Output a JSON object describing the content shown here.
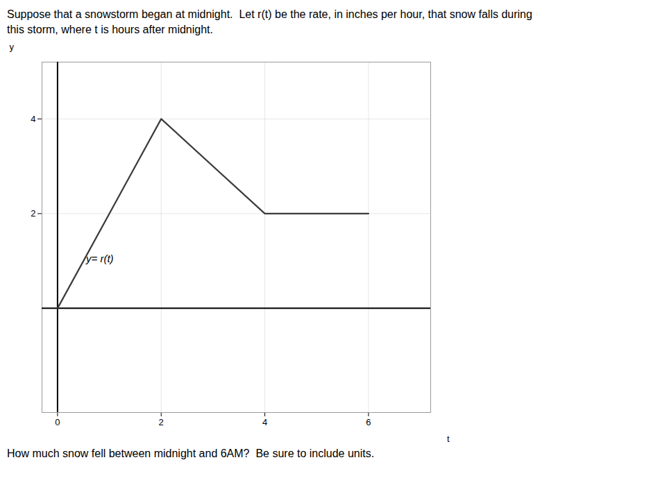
{
  "chart_data": {
    "type": "line",
    "title": "Suppose that a snowstorm began at midnight.  Let r(t) be the rate, in inches per hour, that snow falls during\nthis storm, where t is hours after midnight.",
    "caption": "How much snow fell between midnight and 6AM?  Be sure to include units.",
    "x": [
      0,
      2,
      4,
      6
    ],
    "values": [
      0,
      4,
      2,
      2
    ],
    "color": "#3a3a3a",
    "xlabel": "t",
    "ylabel": "y",
    "xlim": [
      -0.3,
      7.2
    ],
    "ylim": [
      -2.2,
      5.2
    ],
    "xticks": [
      0,
      2,
      4,
      6
    ],
    "yticks": [
      2,
      4
    ],
    "grid": true,
    "annotations": [
      {
        "text": "y= r(t)",
        "x": 0.55,
        "y": 1.05
      }
    ]
  }
}
